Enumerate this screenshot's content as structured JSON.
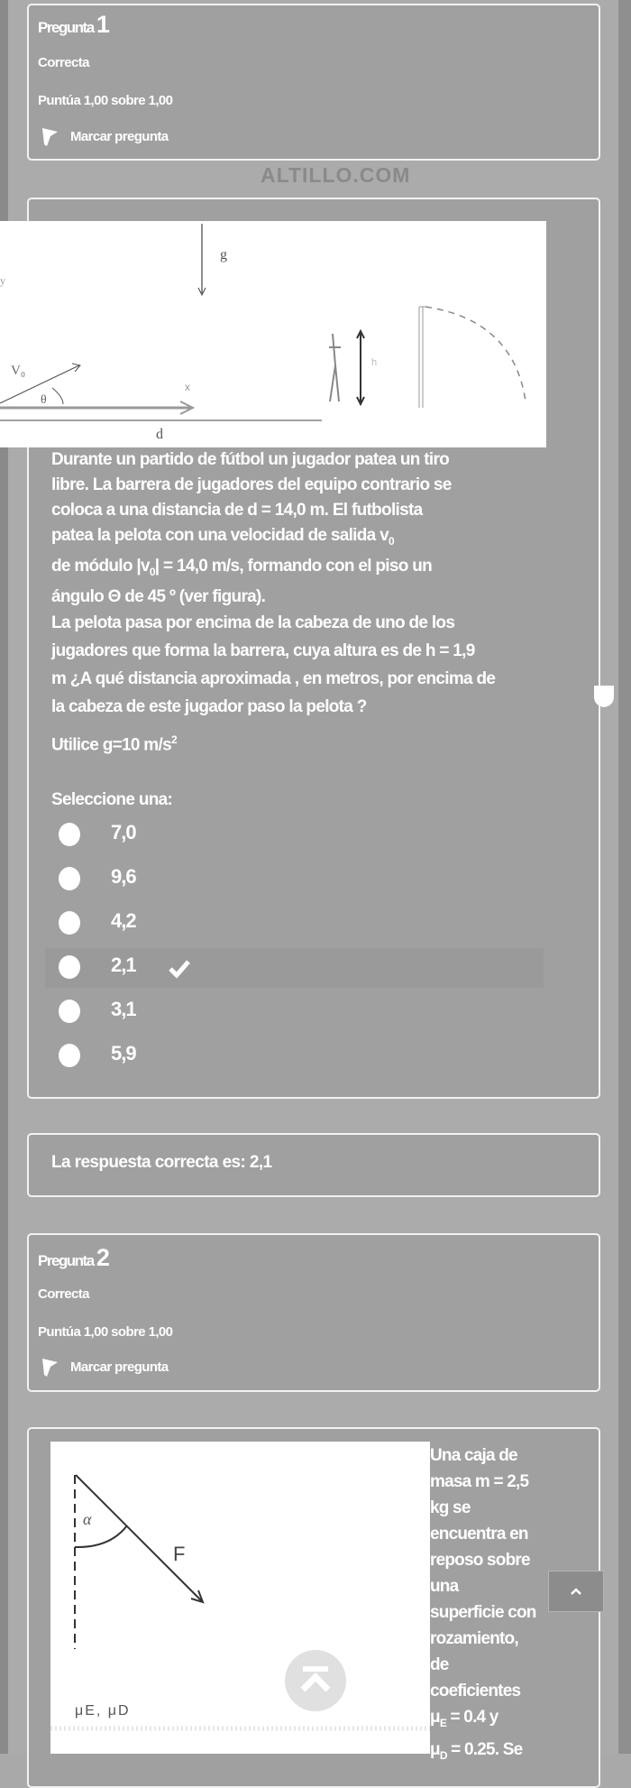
{
  "watermark": "ALTILLO.COM",
  "question1": {
    "title_word": "Pregunta",
    "number": "1",
    "state": "Correcta",
    "grade": "Puntúa 1,00 sobre 1,00",
    "flag_label": "Marcar pregunta",
    "figure_labels": {
      "g": "g",
      "y": "y",
      "v0": "V₀",
      "theta": "θ",
      "x": "x",
      "d": "d",
      "h": "h"
    },
    "paragraph1": {
      "l1": "Durante un partido  de fútbol un jugador patea un tiro",
      "l2": "libre. La barrera de jugadores del equipo contrario  se",
      "l3": "coloca  a  una distancia  de  d = 14,0  m. El futbolista",
      "l4a": "patea la pelota  con una velocidad de salida  v",
      "l4sub": "0",
      "l5a": "de  módulo  |v",
      "l5sub": "0",
      "l5b": "| = 14,0 m/s,  formando  con el piso  un",
      "l6": "ángulo Θ  de 45 º (ver figura)."
    },
    "paragraph2": {
      "l1": "La pelota pasa  por encima de la cabeza de uno de los",
      "l2": "jugadores que forma la  barrera, cuya  altura  es de h = 1,9",
      "l3": "m ¿A qué distancia aproximada , en metros, por encima de",
      "l4": "la cabeza de este  jugador paso  la pelota ?"
    },
    "gravity_a": "Utilice g=10 m/s",
    "gravity_sup": "2",
    "prompt": "Seleccione una:",
    "options": [
      {
        "label": "7,0",
        "correct": false
      },
      {
        "label": "9,6",
        "correct": false
      },
      {
        "label": "4,2",
        "correct": false
      },
      {
        "label": "2,1",
        "correct": true
      },
      {
        "label": "3,1",
        "correct": false
      },
      {
        "label": "5,9",
        "correct": false
      }
    ],
    "feedback": "La respuesta correcta es: 2,1"
  },
  "question2": {
    "title_word": "Pregunta",
    "number": "2",
    "state": "Correcta",
    "grade": "Puntúa 1,00 sobre 1,00",
    "flag_label": "Marcar pregunta",
    "figure_labels": {
      "alpha": "α",
      "F": "F",
      "mu": "μE, μD"
    },
    "text_lines": [
      "Una caja de",
      "masa m = 2,5",
      "kg se",
      "encuentra en",
      "reposo sobre",
      "una",
      "superficie con",
      "rozamiento,",
      "de",
      "coeficientes"
    ],
    "mu_e_a": "μ",
    "mu_e_sub": "E",
    "mu_e_b": " = 0.4 y",
    "mu_d_a": "μ",
    "mu_d_sub": "D",
    "mu_d_b": " = 0.25. Se"
  },
  "controls": {
    "scroll_top_icon": "chevron-up-icon",
    "back_to_top_icon": "arrow-to-top-icon"
  }
}
